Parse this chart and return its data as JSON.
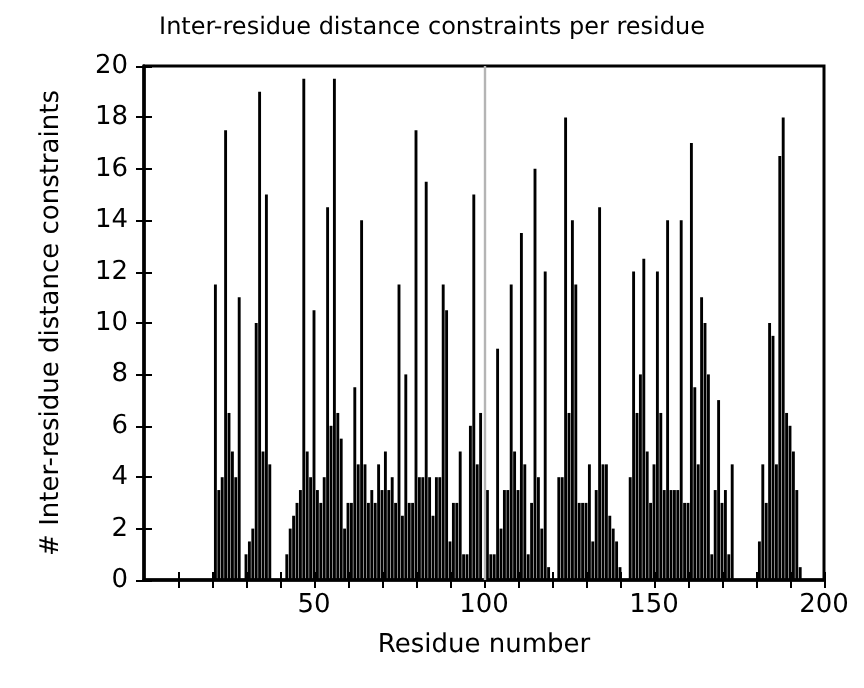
{
  "chart_data": {
    "type": "bar",
    "title": "Inter-residue distance constraints per residue",
    "xlabel": "Residue number",
    "ylabel": "# Inter-residue distance constraints",
    "x": [
      21,
      22,
      23,
      24,
      25,
      26,
      27,
      28,
      29,
      30,
      31,
      32,
      33,
      34,
      35,
      36,
      37,
      38,
      39,
      40,
      41,
      42,
      43,
      44,
      45,
      46,
      47,
      48,
      49,
      50,
      51,
      52,
      53,
      54,
      55,
      56,
      57,
      58,
      59,
      60,
      61,
      62,
      63,
      64,
      65,
      66,
      67,
      68,
      69,
      70,
      71,
      72,
      73,
      74,
      75,
      76,
      77,
      78,
      79,
      80,
      81,
      82,
      83,
      84,
      85,
      86,
      87,
      88,
      89,
      90,
      91,
      92,
      93,
      94,
      95,
      96,
      97,
      98,
      99,
      100,
      101,
      102,
      103,
      104,
      105,
      106,
      107,
      108,
      109,
      110,
      111,
      112,
      113,
      114,
      115,
      116,
      117,
      118,
      119,
      120,
      121,
      122,
      123,
      124,
      125,
      126,
      127,
      128,
      129,
      130,
      131,
      132,
      133,
      134,
      135,
      136,
      137,
      138,
      139,
      140,
      141,
      142,
      143,
      144,
      145,
      146,
      147,
      148,
      149,
      150,
      151,
      152,
      153,
      154,
      155,
      156,
      157,
      158,
      159,
      160,
      161,
      162,
      163,
      164,
      165,
      166,
      167,
      168,
      169,
      170,
      171,
      172,
      173,
      174,
      175,
      176,
      177,
      178,
      179,
      180,
      181,
      182,
      183,
      184,
      185,
      186,
      187,
      188,
      189,
      190,
      191,
      192,
      193
    ],
    "values": [
      11.5,
      3.5,
      4,
      17.5,
      6.5,
      5,
      4,
      11,
      0,
      1,
      1.5,
      2,
      10,
      19,
      5,
      15,
      4.5,
      0,
      0,
      0,
      0,
      1,
      2,
      2.5,
      3,
      3.5,
      19.5,
      5,
      4,
      10.5,
      3.5,
      3,
      4,
      14.5,
      6,
      19.5,
      6.5,
      5.5,
      2,
      3,
      3,
      7.5,
      4.5,
      14,
      4.5,
      3,
      3.5,
      3,
      4.5,
      3.5,
      5,
      3.5,
      4,
      3,
      11.5,
      2.5,
      8,
      3,
      3,
      17.5,
      4,
      4,
      15.5,
      4,
      2.5,
      4,
      4,
      11.5,
      10.5,
      1.5,
      3,
      3,
      5,
      1,
      1,
      6,
      15,
      4.5,
      6.5,
      null,
      3.5,
      1,
      1,
      9,
      2,
      3.5,
      3.5,
      11.5,
      5,
      3.5,
      13.5,
      4.5,
      1,
      3,
      16,
      4,
      2,
      12,
      0.5,
      0,
      0,
      4,
      4,
      18,
      6.5,
      14,
      11.5,
      3,
      3,
      3,
      4.5,
      1.5,
      3.5,
      14.5,
      4.5,
      4.5,
      2.5,
      2,
      1.5,
      0.5,
      0,
      0,
      4,
      12,
      6.5,
      8,
      12.5,
      5,
      3,
      4.5,
      12,
      6.5,
      3.5,
      14,
      3.5,
      3.5,
      3.5,
      14,
      3,
      3,
      17,
      7.5,
      4.5,
      11,
      10,
      8,
      1,
      3.5,
      7,
      3,
      3.5,
      1,
      4.5,
      0,
      0,
      0,
      0,
      0,
      0,
      0,
      1.5,
      4.5,
      3,
      10,
      9.5,
      4.5,
      16.5,
      18,
      6.5,
      6,
      5,
      3.5,
      0.5
    ],
    "color": "#000000",
    "xlim": [
      0,
      200
    ],
    "xticks": [
      {
        "value": 10,
        "label": null
      },
      {
        "value": 20,
        "label": null
      },
      {
        "value": 30,
        "label": null
      },
      {
        "value": 40,
        "label": null
      },
      50,
      {
        "value": 60,
        "label": null
      },
      {
        "value": 70,
        "label": null
      },
      {
        "value": 80,
        "label": null
      },
      {
        "value": 90,
        "label": null
      },
      100,
      {
        "value": 110,
        "label": null
      },
      {
        "value": 120,
        "label": null
      },
      {
        "value": 130,
        "label": null
      },
      {
        "value": 140,
        "label": null
      },
      150,
      {
        "value": 160,
        "label": null
      },
      {
        "value": 170,
        "label": null
      },
      {
        "value": 180,
        "label": null
      },
      {
        "value": 190,
        "label": null
      },
      200
    ],
    "ylim": [
      0,
      20
    ],
    "yticks": [
      0,
      2,
      4,
      6,
      8,
      10,
      12,
      14,
      16,
      18,
      20
    ],
    "ref_lines": [
      {
        "axis": "x",
        "value": 100,
        "color": "#b4b4b4"
      }
    ]
  }
}
